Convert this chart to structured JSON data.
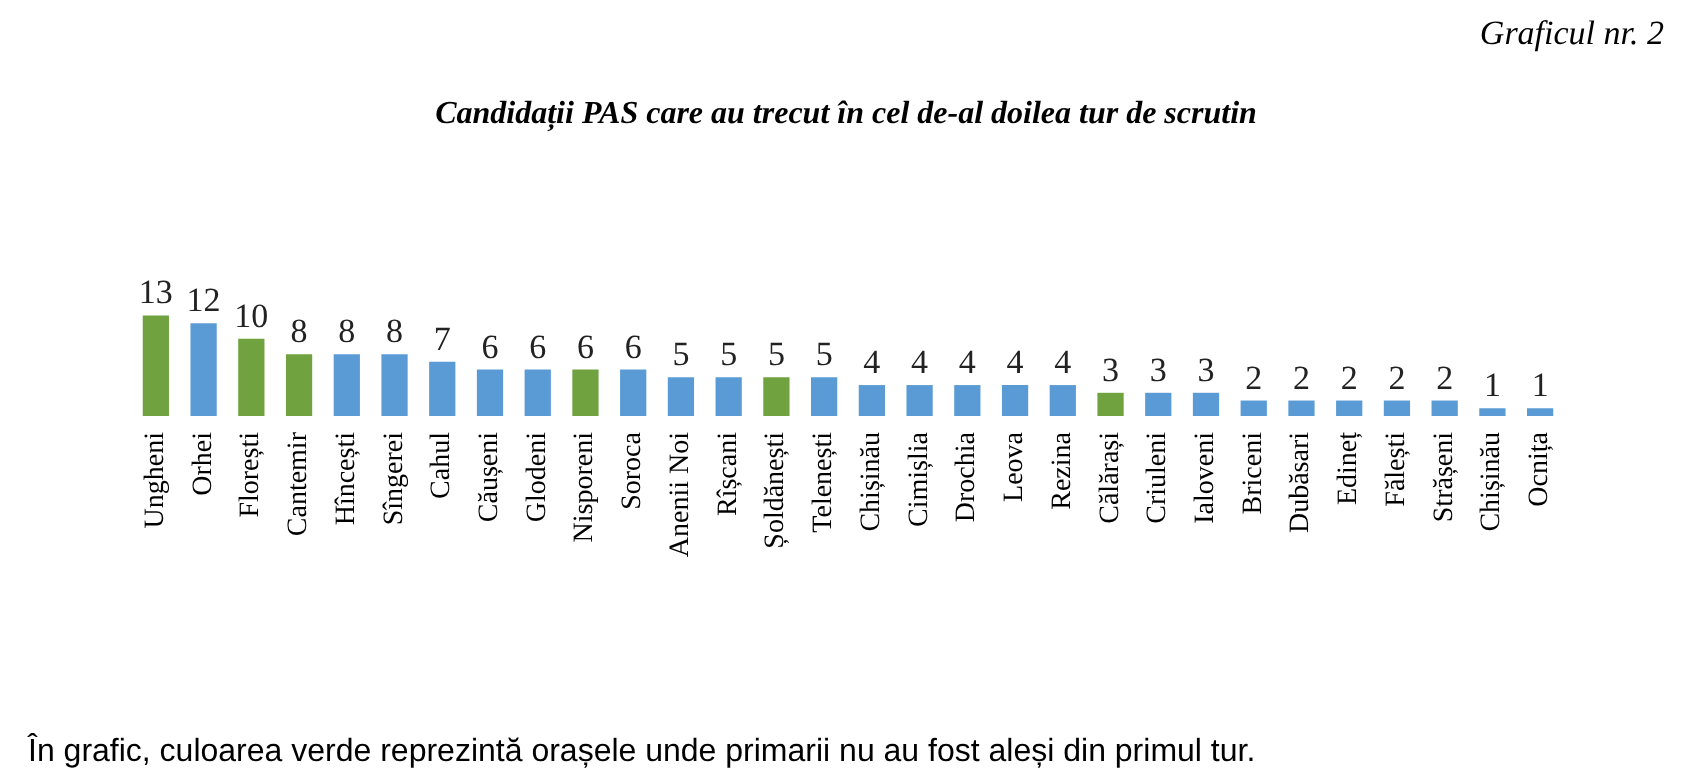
{
  "chart_data": {
    "type": "bar",
    "title": "Candidații PAS care au trecut în cel de-al doilea tur de scrutin",
    "annotations": [
      "Graficul nr. 2",
      "În grafic, culoarea verde reprezintă orașele unde primarii nu au fost aleși din primul tur."
    ],
    "categories": [
      "Ungheni",
      "Orhei",
      "Florești",
      "Cantemir",
      "Hîncești",
      "Sîngerei",
      "Cahul",
      "Căușeni",
      "Glodeni",
      "Nisporeni",
      "Soroca",
      "Anenii Noi",
      "Rîșcani",
      "Șoldănești",
      "Telenești",
      "Chișinău",
      "Cimișlia",
      "Drochia",
      "Leova",
      "Rezina",
      "Călărași",
      "Criuleni",
      "Ialoveni",
      "Briceni",
      "Dubăsari",
      "Edineț",
      "Fălești",
      "Strășeni",
      "Chișinău",
      "Ocnița"
    ],
    "values": [
      13,
      12,
      10,
      8,
      8,
      8,
      7,
      6,
      6,
      6,
      6,
      5,
      5,
      5,
      5,
      4,
      4,
      4,
      4,
      4,
      3,
      3,
      3,
      2,
      2,
      2,
      2,
      2,
      1,
      1
    ],
    "colors": [
      "#70a33f",
      "#5b9bd5",
      "#70a33f",
      "#70a33f",
      "#5b9bd5",
      "#5b9bd5",
      "#5b9bd5",
      "#5b9bd5",
      "#5b9bd5",
      "#70a33f",
      "#5b9bd5",
      "#5b9bd5",
      "#5b9bd5",
      "#70a33f",
      "#5b9bd5",
      "#5b9bd5",
      "#5b9bd5",
      "#5b9bd5",
      "#5b9bd5",
      "#5b9bd5",
      "#70a33f",
      "#5b9bd5",
      "#5b9bd5",
      "#5b9bd5",
      "#5b9bd5",
      "#5b9bd5",
      "#5b9bd5",
      "#5b9bd5",
      "#5b9bd5",
      "#5b9bd5"
    ],
    "data_labels": true
  }
}
